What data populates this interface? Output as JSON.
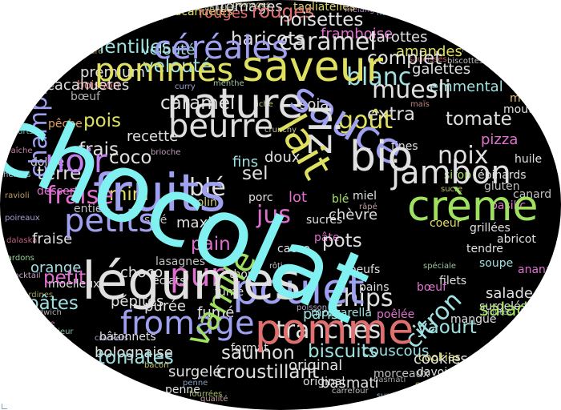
{
  "words": {
    "chocolat": "chocolat",
    "legumes": "légumes",
    "fruits": "fruits",
    "poulet": "poulet",
    "pommes": "pommes",
    "saveur": "saveur",
    "nature": "nature",
    "sauce": "sauce",
    "riz": "riz",
    "lait": "lait",
    "bio": "bio",
    "creme": "crème",
    "jambon": "jambon",
    "noir": "noir",
    "pomme": "pomme",
    "pur": "pur",
    "vanille": "vanille",
    "fromage": "fromage",
    "petits": "petits",
    "fraise": "fraise",
    "beurre": "beurre",
    "cereales": "céréales",
    "muesli": "muesli",
    "gout": "goût",
    "noix": "noix",
    "ble": "blé",
    "jus": "jus",
    "tranches": "tranches",
    "saumon": "saumon",
    "chips": "chips",
    "yaourt": "yaourt",
    "biscuits": "biscuits",
    "citron": "citron",
    "pots": "pots",
    "haricots": "haricots",
    "caramel": "caramel",
    "noisettes": "noisettes",
    "lentilles": "lentilles",
    "champignons": "champignons",
    "blanc": "blanc",
    "complet": "complet",
    "extra": "extra",
    "tomate": "tomate",
    "terre": "terre",
    "mini": "mini",
    "coco": "coco",
    "frais": "frais",
    "pois": "pois",
    "rouges": "rouges",
    "framboise": "framboise",
    "soja": "soja",
    "carottes": "carottes",
    "amandes": "amandes",
    "galettes": "galettes",
    "emmental": "emmental",
    "pizza": "pizza",
    "pepites": "pépites",
    "tomates": "tomates",
    "bolognaise": "bolognaise",
    "surgele": "surgelé",
    "croustillant": "croustillant",
    "puree": "purée",
    "petit": "petit",
    "pates": "pâtes",
    "orange": "orange",
    "choco": "choco",
    "salade": "salade",
    "veloute": "velouté",
    "dessert": "dessert",
    "paris": "paris",
    "pain": "pain",
    "maxi": "maxi",
    "sel": "sel",
    "porc": "porc",
    "thon": "thon",
    "fins": "fins",
    "lot": "lot",
    "cacao": "cacao",
    "pate": "pâte",
    "chevre": "chèvre",
    "boeuf": "bœuf",
    "tendre": "tendre",
    "soupe": "soupe",
    "fume": "fumé",
    "doux": "doux",
    "verts": "verts",
    "recette": "recette",
    "peche": "pêche",
    "colin": "colin",
    "sucres": "sucrés",
    "miel": "miel",
    "morceaux": "morceaux",
    "couscous": "couscous",
    "surgeles": "surgelés",
    "mangue": "mangue",
    "ananas": "ananas",
    "basilic": "basilic",
    "coeur": "coeur",
    "grillees": "grillées",
    "abricot": "abricot",
    "canard": "canard",
    "moelleux": "moelleux",
    "lasagnes": "lasagnes",
    "cookies": "cookies",
    "filets": "filets",
    "oeufs": "oeufs",
    "pains": "pains",
    "olive": "olive",
    "mousse": "mousse",
    "moutarde": "moutarde",
    "fondant": "fondant",
    "boisson": "boisson",
    "nouilles": "nouilles",
    "quinoa": "quinoa",
    "cacahuetes": "cacahuètes",
    "fromages": "fromages",
    "tagliatelles": "tagliatelles",
    "madeleines": "madeleines",
    "noisette": "noisette",
    "premium": "premium",
    "courgettes": "courgettes",
    "epinards": "épinards",
    "gluten": "gluten",
    "huile": "huile",
    "sirop": "sirop",
    "original": "original",
    "graines": "graines",
    "davoine": "davoine",
    "basmati": "basmati",
    "carrefour": "carrefour",
    "qualite": "qualité",
    "fourrees": "fourrées",
    "format": "format",
    "fraiche": "fraîche",
    "herbes": "herbes",
    "ravioli": "ravioli",
    "poireaux": "poireaux",
    "lardons": "lardons",
    "dalaska": "dalaska",
    "eclats": "éclats",
    "entier": "entier",
    "doli": "dolive",
    "sale": "salé",
    "penne": "penne",
    "crackers": "crackers",
    "bacon": "bacon",
    "mozzarella": "mozzarella",
    "poelee": "poêlée",
    "lancienne": "lancienne",
    "sandwich": "sandwich",
    "batonnets": "bâtonnets",
    "superieur": "supérieur",
    "sardines": "sardines",
    "cocktail": "cocktail",
    "riche": "riche",
    "rape": "râpé",
    "poire": "poire",
    "ajoutes": "ajoutés",
    "speciale": "spéciale",
    "taboule": "taboulé",
    "dejeuner": "déjeuner",
    "barbecue": "barbecue",
    "mayonnaise": "mayonnaise",
    "confiture": "confiture",
    "provencale": "provençale",
    "coquillettes": "coquillettes",
    "yaourts": "yaourts",
    "crunchy": "crunchy",
    "gourmand": "gourmand",
    "brioche": "brioche",
    "roti": "rôti",
    "curry": "curry",
    "menthe": "menthe",
    "melange": "mélange",
    "saucisses": "saucisses",
    "poisson": "poisson",
    "entieres": "entières",
    "biscottes": "biscottes",
    "raisins": "raisins",
    "fines": "fines",
    "mais": "maïs",
    "sucre": "sucre"
  },
  "colors": {
    "background": "#000000",
    "outside": "#ffffff"
  }
}
